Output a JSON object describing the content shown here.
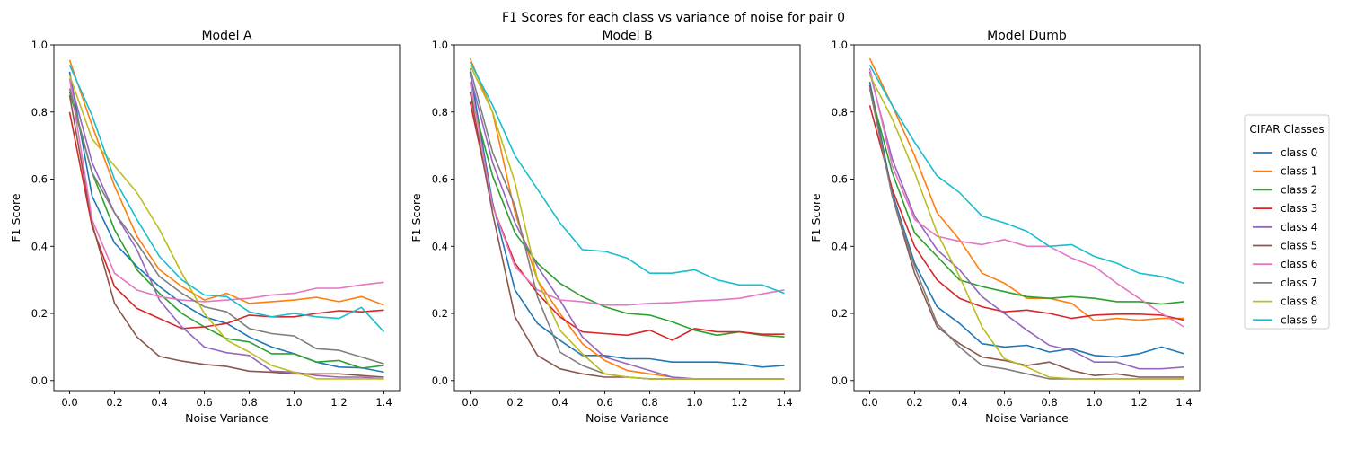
{
  "figure": {
    "suptitle": "F1 Scores for each class vs variance of noise for pair 0",
    "legend_title": "CIFAR Classes"
  },
  "chart_data": [
    {
      "type": "line",
      "title": "Model A",
      "xlabel": "Noise Variance",
      "ylabel": "F1 Score",
      "xlim": [
        -0.07,
        1.47
      ],
      "ylim": [
        -0.03,
        1.0
      ],
      "xticks": [
        0.0,
        0.2,
        0.4,
        0.6,
        0.8,
        1.0,
        1.2,
        1.4
      ],
      "yticks": [
        0.0,
        0.2,
        0.4,
        0.6,
        0.8,
        1.0
      ],
      "x": [
        0.0,
        0.1,
        0.2,
        0.3,
        0.4,
        0.5,
        0.6,
        0.7,
        0.8,
        0.9,
        1.0,
        1.1,
        1.2,
        1.3,
        1.4
      ],
      "series": [
        {
          "name": "class 0",
          "values": [
            0.92,
            0.55,
            0.41,
            0.34,
            0.28,
            0.23,
            0.19,
            0.17,
            0.13,
            0.1,
            0.08,
            0.055,
            0.04,
            0.038,
            0.025
          ]
        },
        {
          "name": "class 1",
          "values": [
            0.955,
            0.76,
            0.58,
            0.43,
            0.33,
            0.28,
            0.24,
            0.26,
            0.23,
            0.235,
            0.24,
            0.248,
            0.235,
            0.25,
            0.225
          ]
        },
        {
          "name": "class 2",
          "values": [
            0.86,
            0.62,
            0.45,
            0.33,
            0.26,
            0.2,
            0.16,
            0.125,
            0.115,
            0.08,
            0.08,
            0.055,
            0.06,
            0.037,
            0.045
          ]
        },
        {
          "name": "class 3",
          "values": [
            0.8,
            0.46,
            0.28,
            0.215,
            0.185,
            0.155,
            0.16,
            0.17,
            0.195,
            0.19,
            0.19,
            0.2,
            0.208,
            0.205,
            0.21
          ]
        },
        {
          "name": "class 4",
          "values": [
            0.9,
            0.65,
            0.5,
            0.39,
            0.24,
            0.16,
            0.1,
            0.083,
            0.075,
            0.028,
            0.025,
            0.015,
            0.01,
            0.01,
            0.005
          ]
        },
        {
          "name": "class 5",
          "values": [
            0.85,
            0.47,
            0.23,
            0.13,
            0.072,
            0.058,
            0.048,
            0.042,
            0.028,
            0.025,
            0.02,
            0.02,
            0.02,
            0.015,
            0.01
          ]
        },
        {
          "name": "class 6",
          "values": [
            0.9,
            0.48,
            0.32,
            0.27,
            0.25,
            0.24,
            0.235,
            0.24,
            0.245,
            0.255,
            0.26,
            0.275,
            0.275,
            0.285,
            0.293
          ]
        },
        {
          "name": "class 7",
          "values": [
            0.87,
            0.62,
            0.5,
            0.41,
            0.31,
            0.26,
            0.22,
            0.205,
            0.155,
            0.14,
            0.133,
            0.095,
            0.09,
            0.07,
            0.05
          ]
        },
        {
          "name": "class 8",
          "values": [
            0.91,
            0.72,
            0.64,
            0.56,
            0.45,
            0.32,
            0.2,
            0.12,
            0.085,
            0.045,
            0.025,
            0.005,
            0.005,
            0.005,
            0.005
          ]
        },
        {
          "name": "class 9",
          "values": [
            0.94,
            0.79,
            0.6,
            0.48,
            0.37,
            0.3,
            0.255,
            0.25,
            0.205,
            0.19,
            0.2,
            0.19,
            0.185,
            0.218,
            0.145
          ]
        }
      ]
    },
    {
      "type": "line",
      "title": "Model B",
      "xlabel": "Noise Variance",
      "ylabel": "F1 Score",
      "xlim": [
        -0.07,
        1.47
      ],
      "ylim": [
        -0.03,
        1.0
      ],
      "xticks": [
        0.0,
        0.2,
        0.4,
        0.6,
        0.8,
        1.0,
        1.2,
        1.4
      ],
      "yticks": [
        0.0,
        0.2,
        0.4,
        0.6,
        0.8,
        1.0
      ],
      "x": [
        0.0,
        0.1,
        0.2,
        0.3,
        0.4,
        0.5,
        0.6,
        0.7,
        0.8,
        0.9,
        1.0,
        1.1,
        1.2,
        1.3,
        1.4
      ],
      "series": [
        {
          "name": "class 0",
          "values": [
            0.92,
            0.53,
            0.27,
            0.17,
            0.12,
            0.075,
            0.075,
            0.065,
            0.065,
            0.055,
            0.055,
            0.055,
            0.05,
            0.04,
            0.045
          ]
        },
        {
          "name": "class 1",
          "values": [
            0.96,
            0.8,
            0.5,
            0.3,
            0.2,
            0.11,
            0.06,
            0.03,
            0.02,
            0.01,
            0.005,
            0.005,
            0.005,
            0.005,
            0.005
          ]
        },
        {
          "name": "class 2",
          "values": [
            0.86,
            0.61,
            0.44,
            0.35,
            0.29,
            0.25,
            0.22,
            0.2,
            0.195,
            0.175,
            0.15,
            0.135,
            0.145,
            0.135,
            0.13
          ]
        },
        {
          "name": "class 3",
          "values": [
            0.83,
            0.52,
            0.35,
            0.26,
            0.19,
            0.145,
            0.14,
            0.135,
            0.15,
            0.12,
            0.155,
            0.145,
            0.145,
            0.138,
            0.138
          ]
        },
        {
          "name": "class 4",
          "values": [
            0.91,
            0.65,
            0.47,
            0.34,
            0.24,
            0.13,
            0.07,
            0.05,
            0.03,
            0.01,
            0.005,
            0.005,
            0.005,
            0.005,
            0.005
          ]
        },
        {
          "name": "class 5",
          "values": [
            0.86,
            0.5,
            0.19,
            0.075,
            0.035,
            0.02,
            0.01,
            0.01,
            0.005,
            0.005,
            0.005,
            0.005,
            0.005,
            0.005,
            0.005
          ]
        },
        {
          "name": "class 6",
          "values": [
            0.89,
            0.52,
            0.34,
            0.27,
            0.24,
            0.235,
            0.225,
            0.225,
            0.23,
            0.232,
            0.237,
            0.24,
            0.245,
            0.258,
            0.27
          ]
        },
        {
          "name": "class 7",
          "values": [
            0.93,
            0.68,
            0.52,
            0.25,
            0.085,
            0.045,
            0.02,
            0.01,
            0.005,
            0.005,
            0.005,
            0.005,
            0.005,
            0.005,
            0.005
          ]
        },
        {
          "name": "class 8",
          "values": [
            0.94,
            0.8,
            0.59,
            0.3,
            0.15,
            0.08,
            0.02,
            0.01,
            0.005,
            0.005,
            0.005,
            0.005,
            0.005,
            0.005,
            0.005
          ]
        },
        {
          "name": "class 9",
          "values": [
            0.95,
            0.82,
            0.67,
            0.57,
            0.47,
            0.39,
            0.385,
            0.365,
            0.32,
            0.32,
            0.33,
            0.3,
            0.285,
            0.285,
            0.26
          ]
        }
      ]
    },
    {
      "type": "line",
      "title": "Model Dumb",
      "xlabel": "Noise Variance",
      "ylabel": "F1 Score",
      "xlim": [
        -0.07,
        1.47
      ],
      "ylim": [
        -0.03,
        1.0
      ],
      "xticks": [
        0.0,
        0.2,
        0.4,
        0.6,
        0.8,
        1.0,
        1.2,
        1.4
      ],
      "yticks": [
        0.0,
        0.2,
        0.4,
        0.6,
        0.8,
        1.0
      ],
      "x": [
        0.0,
        0.1,
        0.2,
        0.3,
        0.4,
        0.5,
        0.6,
        0.7,
        0.8,
        0.9,
        1.0,
        1.1,
        1.2,
        1.3,
        1.4
      ],
      "series": [
        {
          "name": "class 0",
          "values": [
            0.89,
            0.56,
            0.35,
            0.22,
            0.17,
            0.11,
            0.1,
            0.105,
            0.085,
            0.095,
            0.075,
            0.07,
            0.08,
            0.1,
            0.08
          ]
        },
        {
          "name": "class 1",
          "values": [
            0.96,
            0.82,
            0.67,
            0.5,
            0.42,
            0.32,
            0.29,
            0.245,
            0.245,
            0.23,
            0.178,
            0.185,
            0.18,
            0.185,
            0.185
          ]
        },
        {
          "name": "class 2",
          "values": [
            0.87,
            0.62,
            0.44,
            0.37,
            0.3,
            0.28,
            0.265,
            0.25,
            0.245,
            0.25,
            0.245,
            0.235,
            0.235,
            0.228,
            0.235
          ]
        },
        {
          "name": "class 3",
          "values": [
            0.82,
            0.57,
            0.4,
            0.3,
            0.245,
            0.22,
            0.205,
            0.21,
            0.2,
            0.185,
            0.195,
            0.198,
            0.198,
            0.195,
            0.18
          ]
        },
        {
          "name": "class 4",
          "values": [
            0.92,
            0.66,
            0.49,
            0.39,
            0.33,
            0.25,
            0.2,
            0.15,
            0.105,
            0.09,
            0.055,
            0.055,
            0.035,
            0.035,
            0.04
          ]
        },
        {
          "name": "class 5",
          "values": [
            0.88,
            0.55,
            0.32,
            0.16,
            0.11,
            0.07,
            0.06,
            0.045,
            0.055,
            0.03,
            0.015,
            0.02,
            0.01,
            0.01,
            0.01
          ]
        },
        {
          "name": "class 6",
          "values": [
            0.93,
            0.64,
            0.48,
            0.43,
            0.415,
            0.405,
            0.42,
            0.4,
            0.4,
            0.365,
            0.34,
            0.29,
            0.245,
            0.2,
            0.16
          ]
        },
        {
          "name": "class 7",
          "values": [
            0.87,
            0.55,
            0.34,
            0.17,
            0.1,
            0.045,
            0.035,
            0.02,
            0.005,
            0.005,
            0.005,
            0.005,
            0.005,
            0.005,
            0.005
          ]
        },
        {
          "name": "class 8",
          "values": [
            0.91,
            0.78,
            0.62,
            0.44,
            0.31,
            0.16,
            0.065,
            0.04,
            0.01,
            0.005,
            0.005,
            0.005,
            0.005,
            0.005,
            0.005
          ]
        },
        {
          "name": "class 9",
          "values": [
            0.94,
            0.82,
            0.71,
            0.61,
            0.56,
            0.49,
            0.47,
            0.445,
            0.4,
            0.405,
            0.37,
            0.35,
            0.32,
            0.31,
            0.29
          ]
        }
      ]
    }
  ],
  "colors": [
    "#1f77b4",
    "#ff7f0e",
    "#2ca02c",
    "#d62728",
    "#9467bd",
    "#8c564b",
    "#e377c2",
    "#7f7f7f",
    "#bcbd22",
    "#17becf"
  ]
}
